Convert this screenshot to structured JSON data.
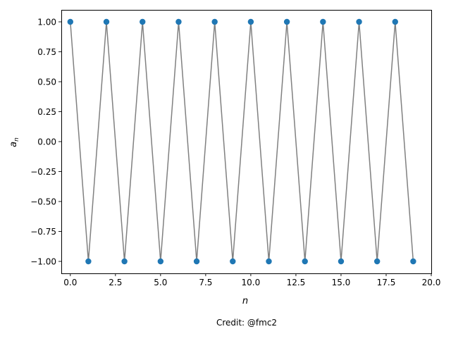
{
  "chart_data": {
    "type": "line",
    "title": "",
    "xlabel": "n",
    "ylabel": "a",
    "ylabel_subscript": "n",
    "xlim": [
      -0.5,
      20.0
    ],
    "ylim": [
      -1.1,
      1.1
    ],
    "xticks": [
      0.0,
      2.5,
      5.0,
      7.5,
      10.0,
      12.5,
      15.0,
      17.5,
      20.0
    ],
    "xtick_labels": [
      "0.0",
      "2.5",
      "5.0",
      "7.5",
      "10.0",
      "12.5",
      "15.0",
      "17.5",
      "20.0"
    ],
    "yticks": [
      1.0,
      0.75,
      0.5,
      0.25,
      0.0,
      -0.25,
      -0.5,
      -0.75,
      -1.0
    ],
    "ytick_labels": [
      "1.00",
      "0.75",
      "0.50",
      "0.25",
      "0.00",
      "−0.25",
      "−0.50",
      "−0.75",
      "−1.00"
    ],
    "grid": false,
    "series": [
      {
        "line_color": "#808080",
        "marker_color": "#1f77b4",
        "x": [
          0,
          1,
          2,
          3,
          4,
          5,
          6,
          7,
          8,
          9,
          10,
          11,
          12,
          13,
          14,
          15,
          16,
          17,
          18,
          19
        ],
        "values": [
          1,
          -1,
          1,
          -1,
          1,
          -1,
          1,
          -1,
          1,
          -1,
          1,
          -1,
          1,
          -1,
          1,
          -1,
          1,
          -1,
          1,
          -1
        ]
      }
    ]
  },
  "credit": "Credit: @fmc2"
}
